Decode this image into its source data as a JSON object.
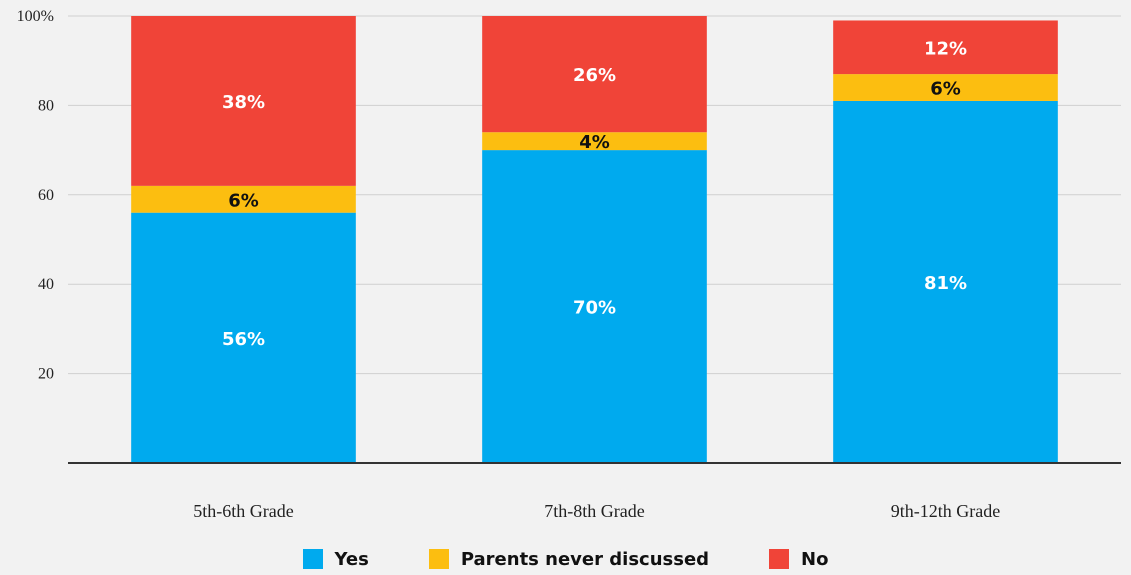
{
  "chart_data": {
    "type": "bar",
    "stacked": true,
    "categories": [
      "5th-6th Grade",
      "7th-8th Grade",
      "9th-12th Grade"
    ],
    "series": [
      {
        "name": "Yes",
        "color": "#00aaee",
        "values": [
          56,
          70,
          81
        ],
        "labels": [
          "56%",
          "70%",
          "81%"
        ],
        "label_color": "#ffffff"
      },
      {
        "name": "Parents never discussed",
        "color": "#fcbe10",
        "values": [
          6,
          4,
          6
        ],
        "labels": [
          "6%",
          "4%",
          "6%"
        ],
        "label_color": "#111111"
      },
      {
        "name": "No",
        "color": "#f04438",
        "values": [
          38,
          26,
          12
        ],
        "labels": [
          "38%",
          "26%",
          "12%"
        ],
        "label_color": "#ffffff"
      }
    ],
    "ylim": [
      0,
      100
    ],
    "yticks": [
      20,
      40,
      60,
      80,
      100
    ],
    "ytick_labels": [
      "20",
      "40",
      "60",
      "80",
      "100%"
    ],
    "grid": true,
    "legend_position": "bottom"
  }
}
